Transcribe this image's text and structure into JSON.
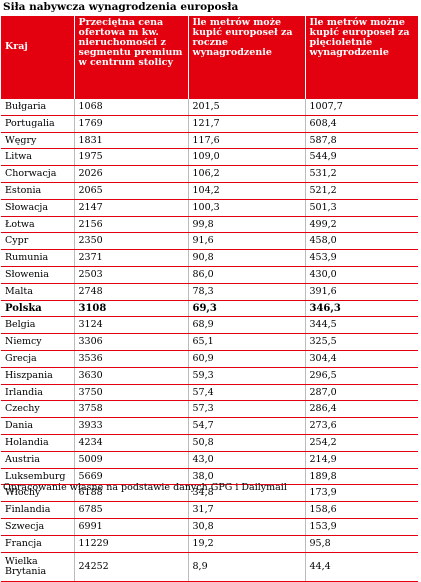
{
  "title": "Siła nabywcza wynagrodzenia europosła",
  "source": "Opracowanie własne na podstawie danych GPG i Dailymail",
  "colors": {
    "header_bg": "#e3000f",
    "row_divider": "#e3000f"
  },
  "chart_data": {
    "type": "table",
    "columns": [
      "Kraj",
      "Przeciętna cena ofertowa m kw. nieruchomości z segmentu premium w centrum stolicy",
      "Ile metrów może kupić europoseł za roczne wynagrodzenie",
      "Ile metrów możne kupić europoseł za pięcioletnie wynagrodzenie"
    ],
    "rows": [
      [
        "Bułgaria",
        "1068",
        "201,5",
        "1007,7"
      ],
      [
        "Portugalia",
        "1769",
        "121,7",
        "608,4"
      ],
      [
        "Węgry",
        "1831",
        "117,6",
        "587,8"
      ],
      [
        "Litwa",
        "1975",
        "109,0",
        "544,9"
      ],
      [
        "Chorwacja",
        "2026",
        "106,2",
        "531,2"
      ],
      [
        "Estonia",
        "2065",
        "104,2",
        "521,2"
      ],
      [
        "Słowacja",
        "2147",
        "100,3",
        "501,3"
      ],
      [
        "Łotwa",
        "2156",
        "99,8",
        "499,2"
      ],
      [
        "Cypr",
        "2350",
        "91,6",
        "458,0"
      ],
      [
        "Rumunia",
        "2371",
        "90,8",
        "453,9"
      ],
      [
        "Słowenia",
        "2503",
        "86,0",
        "430,0"
      ],
      [
        "Malta",
        "2748",
        "78,3",
        "391,6"
      ],
      [
        "Polska",
        "3108",
        "69,3",
        "346,3"
      ],
      [
        "Belgia",
        "3124",
        "68,9",
        "344,5"
      ],
      [
        "Niemcy",
        "3306",
        "65,1",
        "325,5"
      ],
      [
        "Grecja",
        "3536",
        "60,9",
        "304,4"
      ],
      [
        "Hiszpania",
        "3630",
        "59,3",
        "296,5"
      ],
      [
        "Irlandia",
        "3750",
        "57,4",
        "287,0"
      ],
      [
        "Czechy",
        "3758",
        "57,3",
        "286,4"
      ],
      [
        "Dania",
        "3933",
        "54,7",
        "273,6"
      ],
      [
        "Holandia",
        "4234",
        "50,8",
        "254,2"
      ],
      [
        "Austria",
        "5009",
        "43,0",
        "214,9"
      ],
      [
        "Luksemburg",
        "5669",
        "38,0",
        "189,8"
      ],
      [
        "Włochy",
        "6188",
        "34,8",
        "173,9"
      ],
      [
        "Finlandia",
        "6785",
        "31,7",
        "158,6"
      ],
      [
        "Szwecja",
        "6991",
        "30,8",
        "153,9"
      ],
      [
        "Francja",
        "11229",
        "19,2",
        "95,8"
      ],
      [
        "Wielka Brytania",
        "24252",
        "8,9",
        "44,4"
      ]
    ],
    "highlight_row": "Polska"
  }
}
